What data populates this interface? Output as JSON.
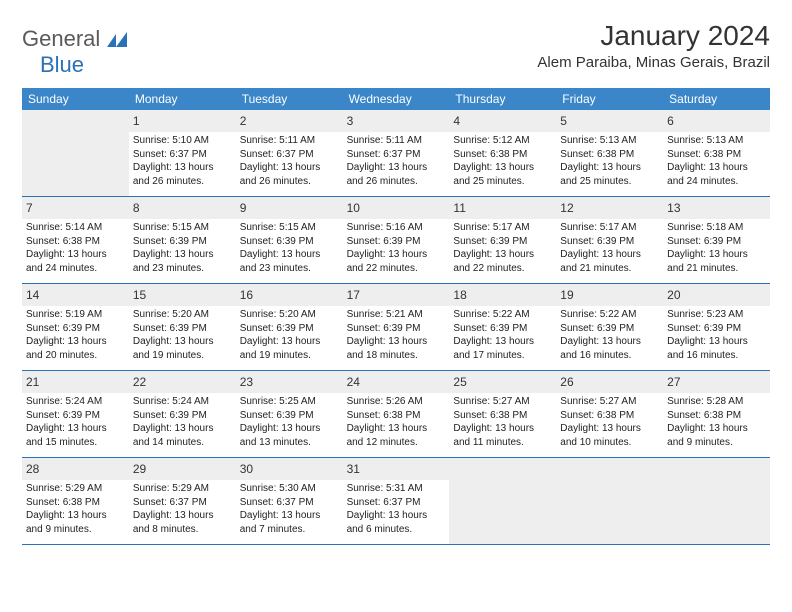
{
  "logo": {
    "general": "General",
    "blue": "Blue"
  },
  "title": "January 2024",
  "location": "Alem Paraiba, Minas Gerais, Brazil",
  "colors": {
    "header_bg": "#3a86c8",
    "border": "#2a71b8",
    "daynum_bg": "#eeeeee",
    "text": "#333333"
  },
  "weekdays": [
    "Sunday",
    "Monday",
    "Tuesday",
    "Wednesday",
    "Thursday",
    "Friday",
    "Saturday"
  ],
  "weeks": [
    [
      {
        "empty": true
      },
      {
        "n": "1",
        "sr": "Sunrise: 5:10 AM",
        "ss": "Sunset: 6:37 PM",
        "dl1": "Daylight: 13 hours",
        "dl2": "and 26 minutes."
      },
      {
        "n": "2",
        "sr": "Sunrise: 5:11 AM",
        "ss": "Sunset: 6:37 PM",
        "dl1": "Daylight: 13 hours",
        "dl2": "and 26 minutes."
      },
      {
        "n": "3",
        "sr": "Sunrise: 5:11 AM",
        "ss": "Sunset: 6:37 PM",
        "dl1": "Daylight: 13 hours",
        "dl2": "and 26 minutes."
      },
      {
        "n": "4",
        "sr": "Sunrise: 5:12 AM",
        "ss": "Sunset: 6:38 PM",
        "dl1": "Daylight: 13 hours",
        "dl2": "and 25 minutes."
      },
      {
        "n": "5",
        "sr": "Sunrise: 5:13 AM",
        "ss": "Sunset: 6:38 PM",
        "dl1": "Daylight: 13 hours",
        "dl2": "and 25 minutes."
      },
      {
        "n": "6",
        "sr": "Sunrise: 5:13 AM",
        "ss": "Sunset: 6:38 PM",
        "dl1": "Daylight: 13 hours",
        "dl2": "and 24 minutes."
      }
    ],
    [
      {
        "n": "7",
        "sr": "Sunrise: 5:14 AM",
        "ss": "Sunset: 6:38 PM",
        "dl1": "Daylight: 13 hours",
        "dl2": "and 24 minutes."
      },
      {
        "n": "8",
        "sr": "Sunrise: 5:15 AM",
        "ss": "Sunset: 6:39 PM",
        "dl1": "Daylight: 13 hours",
        "dl2": "and 23 minutes."
      },
      {
        "n": "9",
        "sr": "Sunrise: 5:15 AM",
        "ss": "Sunset: 6:39 PM",
        "dl1": "Daylight: 13 hours",
        "dl2": "and 23 minutes."
      },
      {
        "n": "10",
        "sr": "Sunrise: 5:16 AM",
        "ss": "Sunset: 6:39 PM",
        "dl1": "Daylight: 13 hours",
        "dl2": "and 22 minutes."
      },
      {
        "n": "11",
        "sr": "Sunrise: 5:17 AM",
        "ss": "Sunset: 6:39 PM",
        "dl1": "Daylight: 13 hours",
        "dl2": "and 22 minutes."
      },
      {
        "n": "12",
        "sr": "Sunrise: 5:17 AM",
        "ss": "Sunset: 6:39 PM",
        "dl1": "Daylight: 13 hours",
        "dl2": "and 21 minutes."
      },
      {
        "n": "13",
        "sr": "Sunrise: 5:18 AM",
        "ss": "Sunset: 6:39 PM",
        "dl1": "Daylight: 13 hours",
        "dl2": "and 21 minutes."
      }
    ],
    [
      {
        "n": "14",
        "sr": "Sunrise: 5:19 AM",
        "ss": "Sunset: 6:39 PM",
        "dl1": "Daylight: 13 hours",
        "dl2": "and 20 minutes."
      },
      {
        "n": "15",
        "sr": "Sunrise: 5:20 AM",
        "ss": "Sunset: 6:39 PM",
        "dl1": "Daylight: 13 hours",
        "dl2": "and 19 minutes."
      },
      {
        "n": "16",
        "sr": "Sunrise: 5:20 AM",
        "ss": "Sunset: 6:39 PM",
        "dl1": "Daylight: 13 hours",
        "dl2": "and 19 minutes."
      },
      {
        "n": "17",
        "sr": "Sunrise: 5:21 AM",
        "ss": "Sunset: 6:39 PM",
        "dl1": "Daylight: 13 hours",
        "dl2": "and 18 minutes."
      },
      {
        "n": "18",
        "sr": "Sunrise: 5:22 AM",
        "ss": "Sunset: 6:39 PM",
        "dl1": "Daylight: 13 hours",
        "dl2": "and 17 minutes."
      },
      {
        "n": "19",
        "sr": "Sunrise: 5:22 AM",
        "ss": "Sunset: 6:39 PM",
        "dl1": "Daylight: 13 hours",
        "dl2": "and 16 minutes."
      },
      {
        "n": "20",
        "sr": "Sunrise: 5:23 AM",
        "ss": "Sunset: 6:39 PM",
        "dl1": "Daylight: 13 hours",
        "dl2": "and 16 minutes."
      }
    ],
    [
      {
        "n": "21",
        "sr": "Sunrise: 5:24 AM",
        "ss": "Sunset: 6:39 PM",
        "dl1": "Daylight: 13 hours",
        "dl2": "and 15 minutes."
      },
      {
        "n": "22",
        "sr": "Sunrise: 5:24 AM",
        "ss": "Sunset: 6:39 PM",
        "dl1": "Daylight: 13 hours",
        "dl2": "and 14 minutes."
      },
      {
        "n": "23",
        "sr": "Sunrise: 5:25 AM",
        "ss": "Sunset: 6:39 PM",
        "dl1": "Daylight: 13 hours",
        "dl2": "and 13 minutes."
      },
      {
        "n": "24",
        "sr": "Sunrise: 5:26 AM",
        "ss": "Sunset: 6:38 PM",
        "dl1": "Daylight: 13 hours",
        "dl2": "and 12 minutes."
      },
      {
        "n": "25",
        "sr": "Sunrise: 5:27 AM",
        "ss": "Sunset: 6:38 PM",
        "dl1": "Daylight: 13 hours",
        "dl2": "and 11 minutes."
      },
      {
        "n": "26",
        "sr": "Sunrise: 5:27 AM",
        "ss": "Sunset: 6:38 PM",
        "dl1": "Daylight: 13 hours",
        "dl2": "and 10 minutes."
      },
      {
        "n": "27",
        "sr": "Sunrise: 5:28 AM",
        "ss": "Sunset: 6:38 PM",
        "dl1": "Daylight: 13 hours",
        "dl2": "and 9 minutes."
      }
    ],
    [
      {
        "n": "28",
        "sr": "Sunrise: 5:29 AM",
        "ss": "Sunset: 6:38 PM",
        "dl1": "Daylight: 13 hours",
        "dl2": "and 9 minutes."
      },
      {
        "n": "29",
        "sr": "Sunrise: 5:29 AM",
        "ss": "Sunset: 6:37 PM",
        "dl1": "Daylight: 13 hours",
        "dl2": "and 8 minutes."
      },
      {
        "n": "30",
        "sr": "Sunrise: 5:30 AM",
        "ss": "Sunset: 6:37 PM",
        "dl1": "Daylight: 13 hours",
        "dl2": "and 7 minutes."
      },
      {
        "n": "31",
        "sr": "Sunrise: 5:31 AM",
        "ss": "Sunset: 6:37 PM",
        "dl1": "Daylight: 13 hours",
        "dl2": "and 6 minutes."
      },
      {
        "empty": true
      },
      {
        "empty": true
      },
      {
        "empty": true
      }
    ]
  ]
}
